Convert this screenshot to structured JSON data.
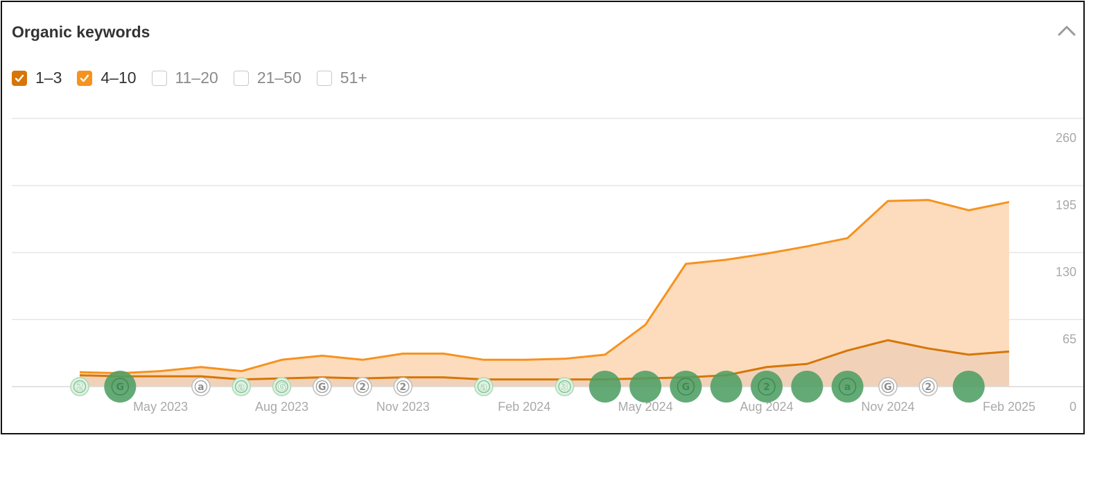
{
  "header": {
    "title": "Organic keywords"
  },
  "filters": [
    {
      "label": "1–3",
      "checked": true,
      "color": "#d67606"
    },
    {
      "label": "4–10",
      "checked": true,
      "color": "#f6921e"
    },
    {
      "label": "11–20",
      "checked": false,
      "color": "#c8c8c8"
    },
    {
      "label": "21–50",
      "checked": false,
      "color": "#c8c8c8"
    },
    {
      "label": "51+",
      "checked": false,
      "color": "#c8c8c8"
    }
  ],
  "icons": {
    "collapse": "chevron-up-icon"
  },
  "colors": {
    "series_4_10": "#f6921e",
    "series_4_10_fill": "#fddcbd",
    "series_1_3": "#d67606",
    "series_1_3_fill": "#f1d2b8",
    "marker_big": "#4f9e64",
    "marker_light": "#aadab4",
    "marker_outline": "#bdbdbd"
  },
  "chart_data": {
    "type": "area",
    "x_labels": [
      "Mar 2023",
      "Apr 2023",
      "May 2023",
      "Jun 2023",
      "Jul 2023",
      "Aug 2023",
      "Sep 2023",
      "Oct 2023",
      "Nov 2023",
      "Dec 2023",
      "Jan 2024",
      "Feb 2024",
      "Mar 2024",
      "Apr 2024",
      "May 2024",
      "Jun 2024",
      "Jul 2024",
      "Aug 2024",
      "Sep 2024",
      "Oct 2024",
      "Nov 2024",
      "Dec 2024",
      "Jan 2025",
      "Feb 2025"
    ],
    "tick_labels": [
      "May 2023",
      "Aug 2023",
      "Nov 2023",
      "Feb 2024",
      "May 2024",
      "Aug 2024",
      "Nov 2024",
      "Feb 2025"
    ],
    "tick_indices": [
      2,
      5,
      8,
      11,
      14,
      17,
      20,
      23
    ],
    "y_ticks": [
      0,
      65,
      130,
      195,
      260
    ],
    "ylim": [
      0,
      260
    ],
    "grid": true,
    "stacked": true,
    "series": [
      {
        "name": "1–3",
        "values": [
          11,
          10,
          10,
          10,
          7,
          8,
          9,
          8,
          9,
          9,
          7,
          7,
          7,
          7,
          8,
          9,
          11,
          19,
          22,
          35,
          45,
          37,
          31,
          34
        ]
      },
      {
        "name": "4–10",
        "values": [
          3,
          3,
          5,
          9,
          8,
          18,
          21,
          18,
          23,
          23,
          19,
          19,
          20,
          24,
          52,
          110,
          112,
          110,
          114,
          109,
          135,
          144,
          140,
          145
        ]
      }
    ],
    "totals": [
      14,
      13,
      15,
      19,
      15,
      26,
      30,
      26,
      32,
      32,
      26,
      26,
      27,
      31,
      60,
      119,
      123,
      129,
      136,
      144,
      180,
      181,
      171,
      179
    ],
    "markers": [
      {
        "i": 0,
        "t": "2",
        "size": "small",
        "style": "light"
      },
      {
        "i": 1,
        "t": "G",
        "size": "big",
        "style": "big"
      },
      {
        "i": 3,
        "t": "a",
        "size": "small",
        "style": "outline"
      },
      {
        "i": 4,
        "t": "a",
        "size": "small",
        "style": "light"
      },
      {
        "i": 5,
        "t": "G",
        "size": "small",
        "style": "light"
      },
      {
        "i": 6,
        "t": "G",
        "size": "small",
        "style": "outline"
      },
      {
        "i": 7,
        "t": "2",
        "size": "small",
        "style": "outline"
      },
      {
        "i": 8,
        "t": "2",
        "size": "small",
        "style": "outline"
      },
      {
        "i": 10,
        "t": "a",
        "size": "small",
        "style": "light"
      },
      {
        "i": 12,
        "t": "3",
        "size": "small",
        "style": "light"
      },
      {
        "i": 13,
        "t": "",
        "size": "big",
        "style": "big"
      },
      {
        "i": 14,
        "t": "",
        "size": "big",
        "style": "big"
      },
      {
        "i": 15,
        "t": "G",
        "size": "big",
        "style": "big"
      },
      {
        "i": 16,
        "t": "",
        "size": "big",
        "style": "big"
      },
      {
        "i": 17,
        "t": "2",
        "size": "big",
        "style": "big"
      },
      {
        "i": 18,
        "t": "",
        "size": "big",
        "style": "big"
      },
      {
        "i": 19,
        "t": "a",
        "size": "big",
        "style": "big"
      },
      {
        "i": 20,
        "t": "G",
        "size": "small",
        "style": "outline"
      },
      {
        "i": 21,
        "t": "2",
        "size": "small",
        "style": "outline"
      },
      {
        "i": 22,
        "t": "",
        "size": "big",
        "style": "big"
      }
    ]
  }
}
